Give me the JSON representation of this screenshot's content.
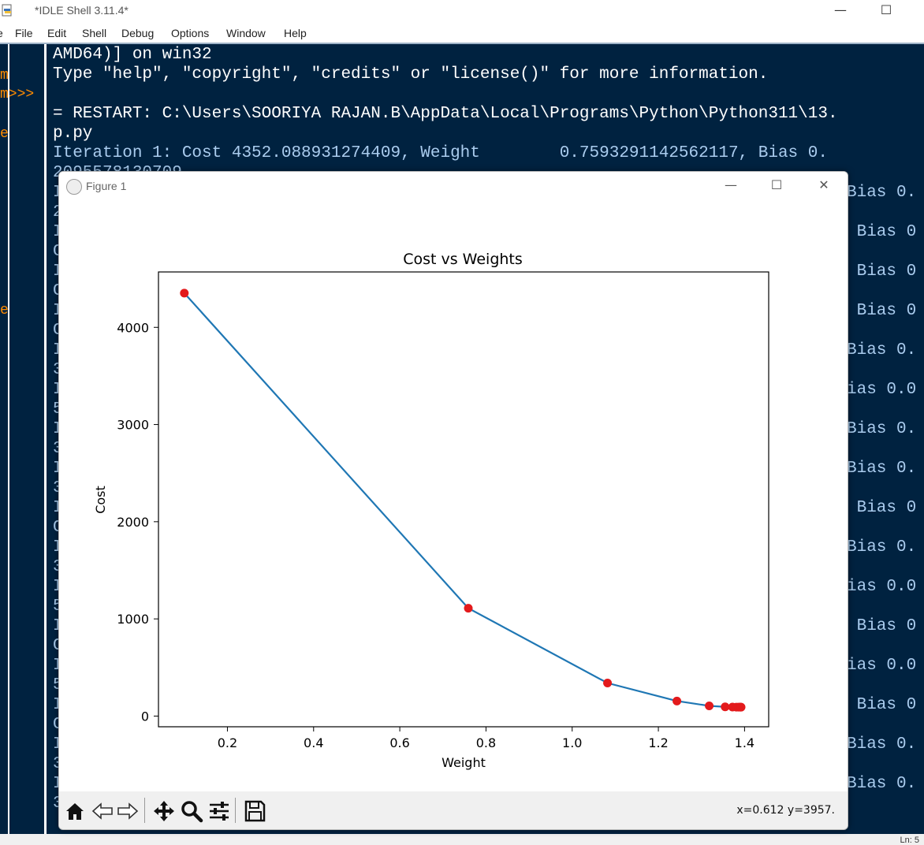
{
  "window": {
    "title": "*IDLE Shell 3.11.4*",
    "minimize_glyph": "—",
    "maximize_glyph": "☐"
  },
  "menu": {
    "edge_fragment": "e",
    "items": [
      "File",
      "Edit",
      "Shell",
      "Debug",
      "Options",
      "Window",
      "Help"
    ]
  },
  "gutter": {
    "marks": [
      "m",
      "m>>>",
      "e",
      "e"
    ]
  },
  "shell": {
    "lines": [
      "AMD64)] on win32",
      "Type \"help\", \"copyright\", \"credits\" or \"license()\" for more information.",
      "",
      "= RESTART: C:\\Users\\SOORIYA RAJAN.B\\AppData\\Local\\Programs\\Python\\Python311\\13.",
      "p.py",
      "Iteration 1: Cost 4352.088931274409, Weight        0.7593291142562117, Bias 0.",
      "2095578130709"
    ],
    "left_fragments": [
      "I",
      "2",
      "I",
      "C",
      "I",
      "C",
      "I",
      "C",
      "I",
      "3",
      "I",
      "5",
      "I",
      "3",
      "I",
      "3",
      "I",
      "C",
      "I",
      "3",
      "I",
      "5",
      "I",
      "C",
      "I",
      "5",
      "I",
      "C",
      "I",
      "3",
      "I",
      "3"
    ],
    "right_fragments": [
      "Bias 0.",
      " Bias 0",
      " Bias 0",
      " Bias 0",
      "Bias 0.",
      "ias 0.0",
      "Bias 0.",
      "Bias 0.",
      " Bias 0",
      "Bias 0.",
      "ias 0.0",
      " Bias 0",
      "ias 0.0",
      " Bias 0",
      "Bias 0.",
      "Bias 0."
    ],
    "status": "Ln: 5"
  },
  "figure": {
    "title": "Figure 1",
    "minimize_glyph": "—",
    "maximize_glyph": "☐",
    "close_glyph": "✕",
    "toolbar": {
      "icons": [
        "home-icon",
        "back-icon",
        "forward-icon",
        "pan-icon",
        "zoom-icon",
        "configure-icon",
        "save-icon"
      ],
      "coord_readout": "x=0.612 y=3957."
    }
  },
  "chart_data": {
    "type": "line",
    "title": "Cost vs Weights",
    "xlabel": "Weight",
    "ylabel": "Cost",
    "xlim": [
      0.04,
      1.456
    ],
    "ylim": [
      -110,
      4570
    ],
    "xticks": [
      0.2,
      0.4,
      0.6,
      0.8,
      1.0,
      1.2,
      1.4
    ],
    "xtick_labels": [
      "0.2",
      "0.4",
      "0.6",
      "0.8",
      "1.0",
      "1.2",
      "1.4"
    ],
    "yticks": [
      0,
      1000,
      2000,
      3000,
      4000
    ],
    "ytick_labels": [
      "0",
      "1000",
      "2000",
      "3000",
      "4000"
    ],
    "grid": false,
    "series": [
      {
        "x": [
          0.1,
          0.759,
          1.082,
          1.243,
          1.318,
          1.355,
          1.372,
          1.381,
          1.386,
          1.389,
          1.391,
          1.392
        ],
        "y": [
          4352,
          1110,
          340,
          155,
          105,
          95,
          93,
          92,
          92,
          92,
          92,
          92
        ],
        "line_color": "#1f77b4",
        "marker_color": "#e31a1c"
      }
    ]
  }
}
